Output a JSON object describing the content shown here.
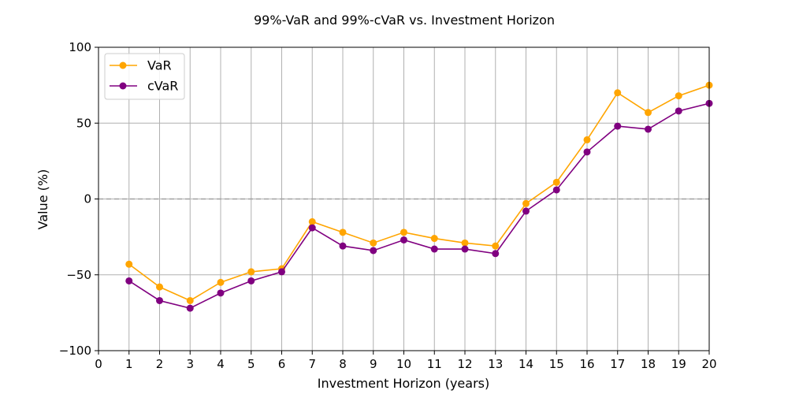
{
  "chart_data": {
    "type": "line",
    "title": "99%-VaR and 99%-cVaR vs. Investment Horizon",
    "xlabel": "Investment Horizon (years)",
    "ylabel": "Value (%)",
    "xlim": [
      0,
      20
    ],
    "ylim": [
      -100,
      100
    ],
    "xticks": [
      0,
      1,
      2,
      3,
      4,
      5,
      6,
      7,
      8,
      9,
      10,
      11,
      12,
      13,
      14,
      15,
      16,
      17,
      18,
      19,
      20
    ],
    "yticks": [
      -100,
      -50,
      0,
      50,
      100
    ],
    "ytick_labels": [
      "−100",
      "−50",
      "0",
      "50",
      "100"
    ],
    "grid": true,
    "zero_line": true,
    "legend_position": "top-left",
    "x": [
      1,
      2,
      3,
      4,
      5,
      6,
      7,
      8,
      9,
      10,
      11,
      12,
      13,
      14,
      15,
      16,
      17,
      18,
      19,
      20
    ],
    "series": [
      {
        "name": "VaR",
        "color": "#ffa500",
        "marker": "circle",
        "values": [
          -43,
          -58,
          -67,
          -55,
          -48,
          -46,
          -15,
          -22,
          -29,
          -22,
          -26,
          -29,
          -31,
          -3,
          11,
          39,
          70,
          57,
          68,
          75
        ]
      },
      {
        "name": "cVaR",
        "color": "#800080",
        "marker": "circle",
        "values": [
          -54,
          -67,
          -72,
          -62,
          -54,
          -48,
          -19,
          -31,
          -34,
          -27,
          -33,
          -33,
          -36,
          -8,
          6,
          31,
          48,
          46,
          58,
          63
        ]
      }
    ]
  }
}
